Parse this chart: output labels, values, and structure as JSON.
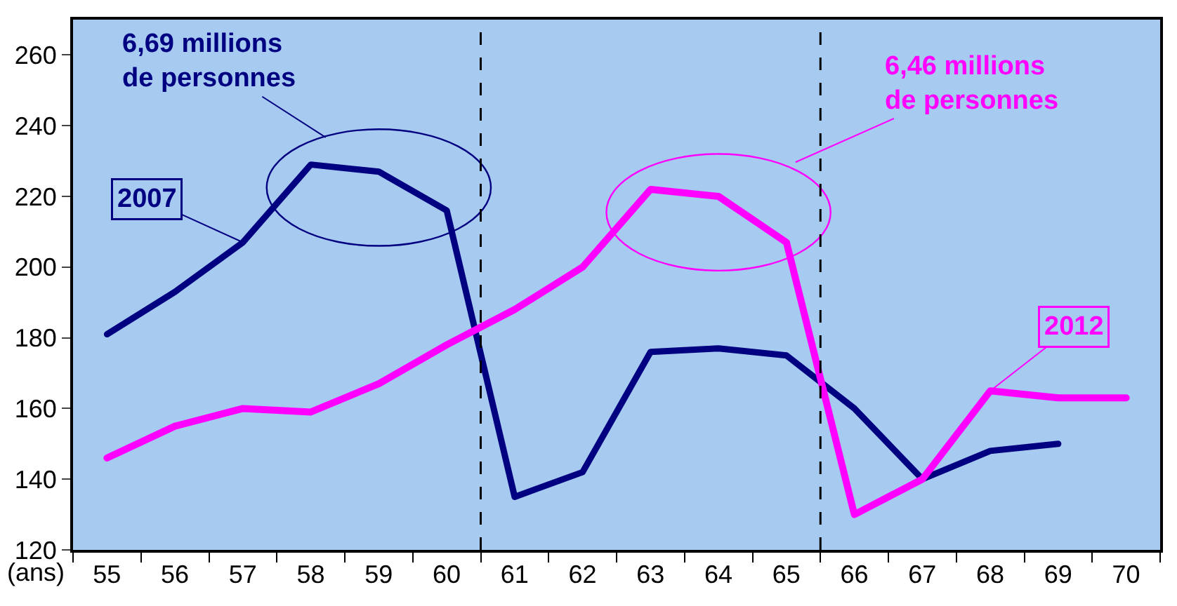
{
  "chart_data": {
    "type": "line",
    "xlabel": "(ans)",
    "x": [
      55,
      56,
      57,
      58,
      59,
      60,
      61,
      62,
      63,
      64,
      65,
      66,
      67,
      68,
      69,
      70
    ],
    "xlim": [
      54.5,
      70.5
    ],
    "xticks": [
      55,
      56,
      57,
      58,
      59,
      60,
      61,
      62,
      63,
      64,
      65,
      66,
      67,
      68,
      69,
      70
    ],
    "ylim": [
      120,
      270
    ],
    "yticks": [
      120,
      140,
      160,
      180,
      200,
      220,
      240,
      260
    ],
    "series": [
      {
        "name": "2007",
        "color": "#000080",
        "values": [
          181,
          193,
          207,
          229,
          227,
          216,
          135,
          142,
          176,
          177,
          175,
          160,
          140,
          148,
          150,
          null
        ]
      },
      {
        "name": "2012",
        "color": "#ff00ff",
        "values": [
          146,
          155,
          160,
          159,
          167,
          178,
          188,
          200,
          222,
          220,
          207,
          130,
          140,
          165,
          163,
          163
        ]
      }
    ],
    "ref_lines": [
      {
        "axis": "x",
        "value": 60.5,
        "color": "#000000",
        "line_style": "dashed"
      },
      {
        "axis": "x",
        "value": 65.5,
        "color": "#000000",
        "line_style": "dashed"
      }
    ],
    "annotations": [
      {
        "text": "6,69 millions\nde personnes",
        "x": 59,
        "y": 227
      },
      {
        "text": "6,46 millions\nde personnes",
        "x": 64,
        "y": 220
      }
    ],
    "grid": false,
    "legend": false,
    "marker": "none",
    "line_style": "solid"
  }
}
